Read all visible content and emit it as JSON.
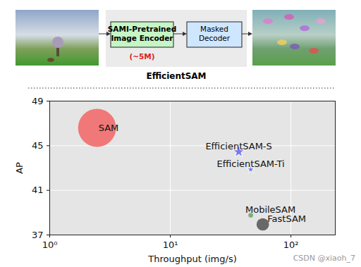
{
  "diagram": {
    "title": "EfficientSAM",
    "encoder": {
      "lines": [
        "SAMI-Pretrained",
        "Image Encoder"
      ],
      "params": "(~5M)"
    },
    "decoder": {
      "lines": [
        "Masked",
        "Decoder"
      ]
    }
  },
  "watermark": "CSDN @xiaoh_7",
  "chart_data": {
    "type": "scatter",
    "x_label": "Throughput (img/s)",
    "y_label": "AP",
    "log": "x",
    "grid": true,
    "series": [
      {
        "name": "SAM",
        "color": "#f26b6b",
        "marker": "circle",
        "x": [
          2.47
        ],
        "values": [
          46.6
        ],
        "sizes": [
          636
        ]
      },
      {
        "name": "EfficientSAM-S",
        "color": "#7b78e8",
        "marker": "star",
        "x": [
          36.9
        ],
        "values": [
          44.45
        ],
        "sizes": [
          25
        ]
      },
      {
        "name": "EfficientSAM-Ti",
        "color": "#7b78e8",
        "marker": "star",
        "x": [
          46.4
        ],
        "values": [
          42.87
        ],
        "sizes": [
          10
        ]
      },
      {
        "name": "MobileSAM",
        "color": "#6aae6a",
        "marker": "circle",
        "x": [
          46.4
        ],
        "values": [
          38.77
        ],
        "sizes": [
          9.7
        ]
      },
      {
        "name": "FastSAM",
        "color": "#5a5a5a",
        "marker": "circle",
        "x": [
          58.4
        ],
        "values": [
          37.95
        ],
        "sizes": [
          68
        ]
      }
    ],
    "xlim": [
      1,
      233
    ],
    "xticks": [
      {
        "value": 1,
        "label": "10⁰"
      },
      {
        "value": 10,
        "label": "10¹"
      },
      {
        "value": 100,
        "label": "10²"
      }
    ],
    "ylim": [
      37,
      49
    ],
    "yticks": [
      37,
      41,
      45,
      49
    ]
  }
}
